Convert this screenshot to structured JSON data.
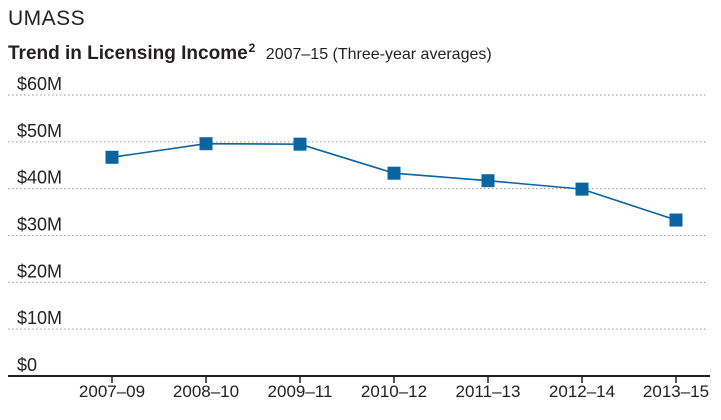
{
  "header": {
    "org": "UMASS",
    "title": "Trend in Licensing Income",
    "title_sup": "2",
    "subtitle": "2007–15 (Three-year averages)"
  },
  "chart_data": {
    "type": "line",
    "title": "Trend in Licensing Income",
    "subtitle": "2007–15 (Three-year averages)",
    "xlabel": "",
    "ylabel": "",
    "categories": [
      "2007–09",
      "2008–10",
      "2009–11",
      "2010–12",
      "2011–13",
      "2012–14",
      "2013–15"
    ],
    "series": [
      {
        "values": [
          46.7,
          49.6,
          49.5,
          43.3,
          41.7,
          39.9,
          33.3
        ]
      }
    ],
    "ylim": [
      0,
      60
    ],
    "yticks": [
      0,
      10,
      20,
      30,
      40,
      50,
      60
    ],
    "ytick_labels": [
      "$0",
      "$10M",
      "$20M",
      "$30M",
      "$40M",
      "$50M",
      "$60M"
    ],
    "grid": "horizontal dotted",
    "marker": "square",
    "line_color": "#0a64a0",
    "grid_color": "#999999",
    "axis_color": "#231f20"
  }
}
